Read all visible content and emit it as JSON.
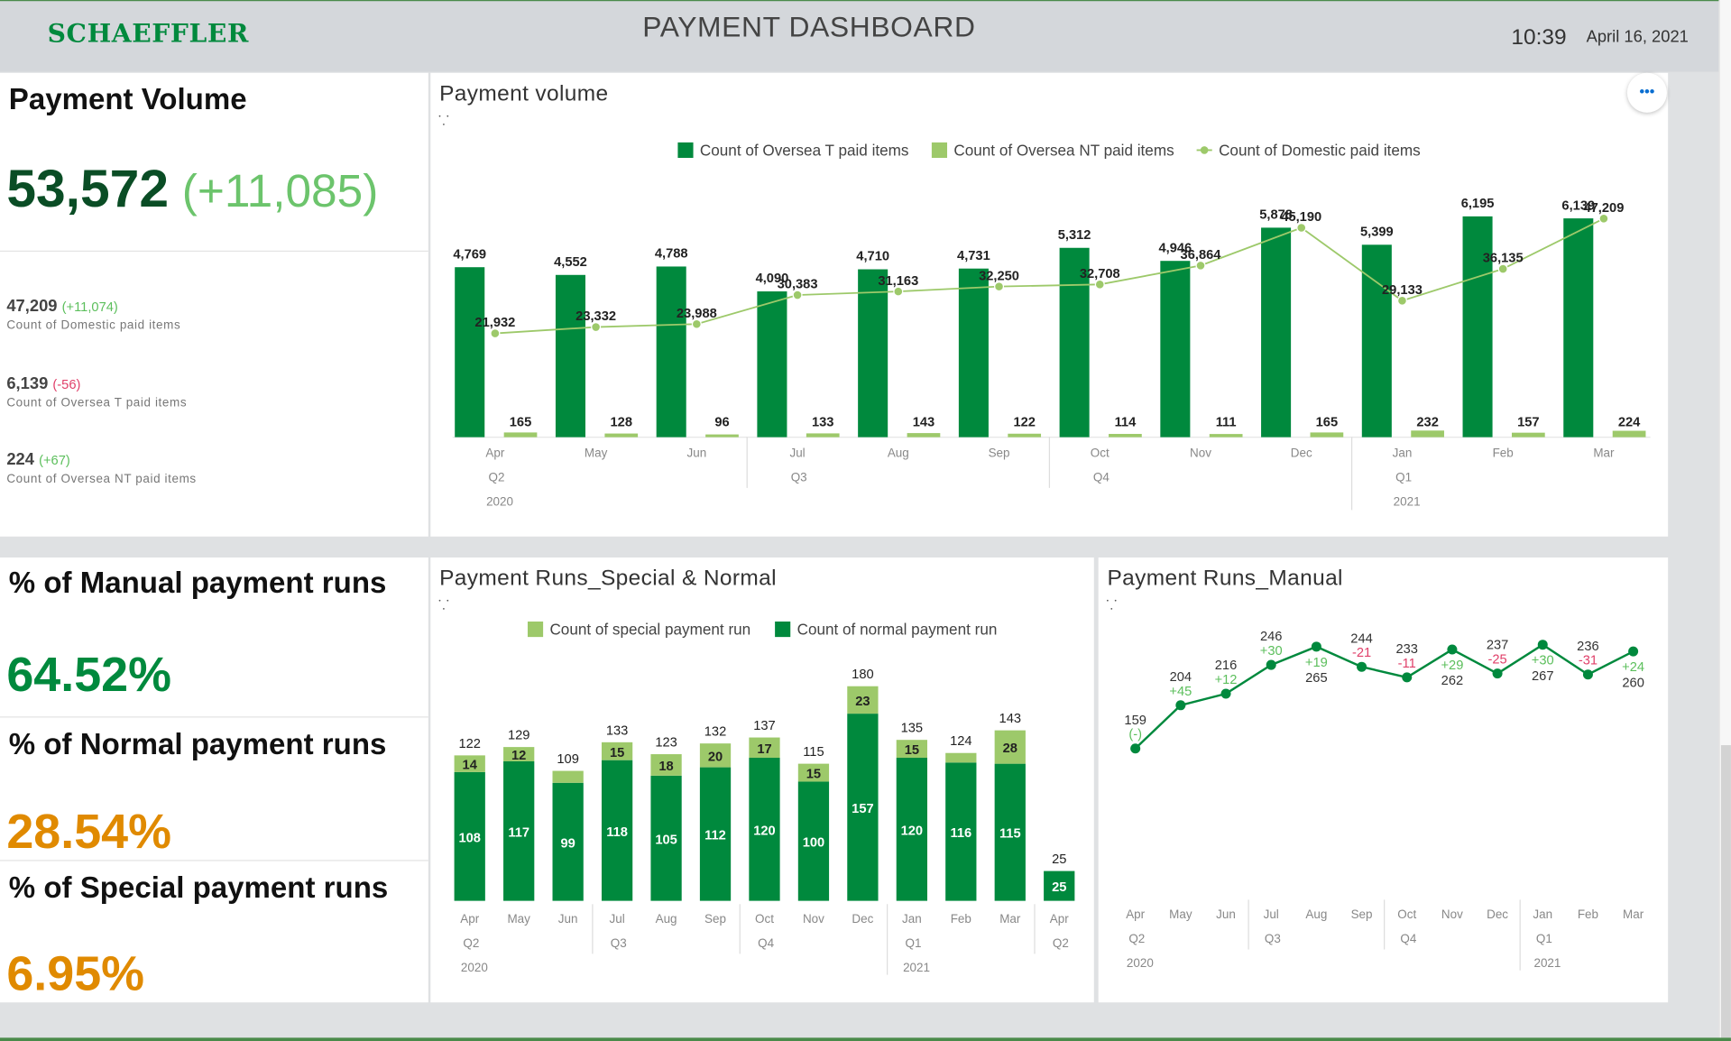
{
  "header": {
    "brand": "SCHAEFFLER",
    "title": "PAYMENT DASHBOARD",
    "time": "10:39",
    "date": "April 16, 2021"
  },
  "colors": {
    "dark_green": "#00893d",
    "light_green": "#9dc96a",
    "big_green": "#0a4d25",
    "positive": "#5cbf5c",
    "negative": "#e0406a",
    "orange": "#e08a00"
  },
  "kpi_volume": {
    "title": "Payment Volume",
    "value": "53,572",
    "delta": "(+11,085)",
    "items": [
      {
        "value": "47,209",
        "delta": "(+11,074)",
        "label": "Count of Domestic paid items"
      },
      {
        "value": "6,139",
        "delta": "(-56)",
        "label": "Count of Oversea T paid items"
      },
      {
        "value": "224",
        "delta": "(+67)",
        "label": "Count of Oversea NT paid items"
      }
    ]
  },
  "kpi_runs": [
    {
      "title": "% of Manual payment runs",
      "value": "64.52%"
    },
    {
      "title": "% of Normal payment runs",
      "value": "28.54%"
    },
    {
      "title": "% of Special payment runs",
      "value": "6.95%"
    }
  ],
  "chart_data": [
    {
      "type": "bar",
      "title": "Payment volume",
      "legend": [
        "Count of Oversea T paid items",
        "Count of Oversea NT paid items",
        "Count of Domestic paid items"
      ],
      "categories": [
        "Apr",
        "May",
        "Jun",
        "Jul",
        "Aug",
        "Sep",
        "Oct",
        "Nov",
        "Dec",
        "Jan",
        "Feb",
        "Mar"
      ],
      "quarters": [
        {
          "label": "Q2",
          "start": 0
        },
        {
          "label": "Q3",
          "start": 3
        },
        {
          "label": "Q4",
          "start": 6
        },
        {
          "label": "Q1",
          "start": 9
        }
      ],
      "years": [
        {
          "label": "2020",
          "start": 0
        },
        {
          "label": "2021",
          "start": 9
        }
      ],
      "series": [
        {
          "name": "Count of Oversea T paid items",
          "type": "bar",
          "values": [
            4769,
            4552,
            4788,
            4090,
            4710,
            4731,
            5312,
            4946,
            5878,
            5399,
            6195,
            6139
          ],
          "labels": [
            "4,769",
            "4,552",
            "4,788",
            "4,090",
            "4,710",
            "4,731",
            "5,312",
            "4,946",
            "5,878",
            "5,399",
            "6,195",
            "6,139"
          ]
        },
        {
          "name": "Count of Oversea NT paid items",
          "type": "bar",
          "values": [
            165,
            128,
            96,
            133,
            143,
            122,
            114,
            111,
            165,
            232,
            157,
            224
          ],
          "labels": [
            "165",
            "128",
            "96",
            "133",
            "143",
            "122",
            "114",
            "111",
            "165",
            "232",
            "157",
            "224"
          ]
        },
        {
          "name": "Count of Domestic paid items",
          "type": "line",
          "values": [
            21932,
            23332,
            23988,
            30383,
            31163,
            32250,
            32708,
            36864,
            45190,
            29133,
            36135,
            47209
          ],
          "labels": [
            "21,932",
            "23,332",
            "23,988",
            "30,383",
            "31,163",
            "32,250",
            "32,708",
            "36,864",
            "45,190",
            "29,133",
            "36,135",
            "47,209"
          ]
        }
      ]
    },
    {
      "type": "bar",
      "title": "Payment Runs_Special & Normal",
      "legend": [
        "Count of special payment run",
        "Count of normal payment run"
      ],
      "categories": [
        "Apr",
        "May",
        "Jun",
        "Jul",
        "Aug",
        "Sep",
        "Oct",
        "Nov",
        "Dec",
        "Jan",
        "Feb",
        "Mar",
        "Apr"
      ],
      "quarters": [
        {
          "label": "Q2",
          "start": 0
        },
        {
          "label": "Q3",
          "start": 3
        },
        {
          "label": "Q4",
          "start": 6
        },
        {
          "label": "Q1",
          "start": 9
        },
        {
          "label": "Q2",
          "start": 12
        }
      ],
      "years": [
        {
          "label": "2020",
          "start": 0
        },
        {
          "label": "2021",
          "start": 9
        }
      ],
      "series": [
        {
          "name": "Count of special payment run",
          "values": [
            14,
            12,
            10,
            15,
            18,
            20,
            17,
            15,
            23,
            15,
            8,
            28,
            0
          ],
          "labels": [
            "14",
            "12",
            "",
            "15",
            "18",
            "20",
            "17",
            "15",
            "23",
            "15",
            "",
            "28",
            ""
          ]
        },
        {
          "name": "Count of normal payment run",
          "values": [
            108,
            117,
            99,
            118,
            105,
            112,
            120,
            100,
            157,
            120,
            116,
            115,
            25
          ],
          "labels": [
            "108",
            "117",
            "99",
            "118",
            "105",
            "112",
            "120",
            "100",
            "157",
            "120",
            "116",
            "115",
            "25"
          ]
        }
      ],
      "totals": [
        "122",
        "129",
        "109",
        "133",
        "123",
        "132",
        "137",
        "115",
        "180",
        "135",
        "124",
        "143",
        "25"
      ]
    },
    {
      "type": "line",
      "title": "Payment Runs_Manual",
      "categories": [
        "Apr",
        "May",
        "Jun",
        "Jul",
        "Aug",
        "Sep",
        "Oct",
        "Nov",
        "Dec",
        "Jan",
        "Feb",
        "Mar"
      ],
      "quarters": [
        {
          "label": "Q2",
          "start": 0
        },
        {
          "label": "Q3",
          "start": 3
        },
        {
          "label": "Q4",
          "start": 6
        },
        {
          "label": "Q1",
          "start": 9
        }
      ],
      "years": [
        {
          "label": "2020",
          "start": 0
        },
        {
          "label": "2021",
          "start": 9
        }
      ],
      "values": [
        159,
        204,
        216,
        246,
        265,
        244,
        233,
        262,
        237,
        267,
        236,
        260
      ],
      "labels": [
        "159",
        "204",
        "216",
        "246",
        "265",
        "244",
        "233",
        "262",
        "237",
        "267",
        "236",
        "260"
      ],
      "deltas": [
        "(-)",
        "+45",
        "+12",
        "+30",
        "+19",
        "-21",
        "-11",
        "+29",
        "-25",
        "+30",
        "-31",
        "+24"
      ]
    }
  ]
}
